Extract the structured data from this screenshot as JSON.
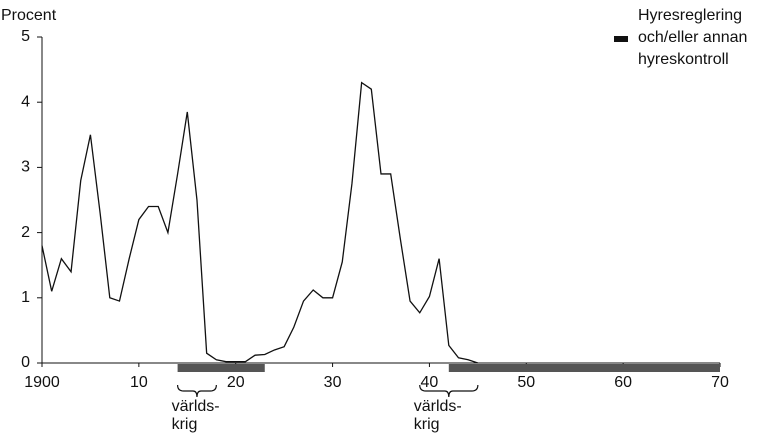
{
  "chart_data": {
    "type": "line",
    "y_label": "Procent",
    "x": [
      1900,
      1901,
      1902,
      1903,
      1904,
      1905,
      1906,
      1907,
      1908,
      1909,
      1910,
      1911,
      1912,
      1913,
      1914,
      1915,
      1916,
      1917,
      1918,
      1919,
      1920,
      1921,
      1922,
      1923,
      1924,
      1925,
      1926,
      1927,
      1928,
      1929,
      1930,
      1931,
      1932,
      1933,
      1934,
      1935,
      1936,
      1937,
      1938,
      1939,
      1940,
      1941,
      1942,
      1943,
      1944,
      1945
    ],
    "series": [
      {
        "color": "#111111",
        "values": [
          1.8,
          1.1,
          1.6,
          1.4,
          2.8,
          3.5,
          2.3,
          1.0,
          0.95,
          1.6,
          2.2,
          2.4,
          2.4,
          2.0,
          2.9,
          3.85,
          2.5,
          0.15,
          0.05,
          0.02,
          0.02,
          0.02,
          0.12,
          0.13,
          0.2,
          0.25,
          0.55,
          0.95,
          1.12,
          1.0,
          1.0,
          1.55,
          2.75,
          4.3,
          4.2,
          2.9,
          2.9,
          1.9,
          0.95,
          0.77,
          1.02,
          1.6,
          0.27,
          0.08,
          0.05,
          0
        ]
      }
    ],
    "xlim": [
      1900,
      1970
    ],
    "xticks": [
      1900,
      {
        "value": 1910,
        "label": "10"
      },
      {
        "value": 1920,
        "label": "20"
      },
      {
        "value": 1930,
        "label": "30"
      },
      {
        "value": 1940,
        "label": "40"
      },
      {
        "value": 1950,
        "label": "50"
      },
      {
        "value": 1960,
        "label": "60"
      },
      {
        "value": 1970,
        "label": "70"
      }
    ],
    "ylim": [
      0,
      5
    ],
    "yticks": [
      0,
      1,
      2,
      3,
      4,
      5
    ],
    "regulation": {
      "color": "#555555",
      "legend": [
        "Hyresreglering",
        "och/eller annan",
        "hyreskontroll"
      ],
      "periods": [
        [
          1914,
          1923
        ],
        [
          1942,
          1970
        ]
      ]
    },
    "wars": [
      {
        "label": [
          "världs-",
          "krig"
        ],
        "range": [
          1914,
          1918
        ]
      },
      {
        "label": [
          "världs-",
          "krig"
        ],
        "range": [
          1939,
          1945
        ]
      }
    ]
  }
}
